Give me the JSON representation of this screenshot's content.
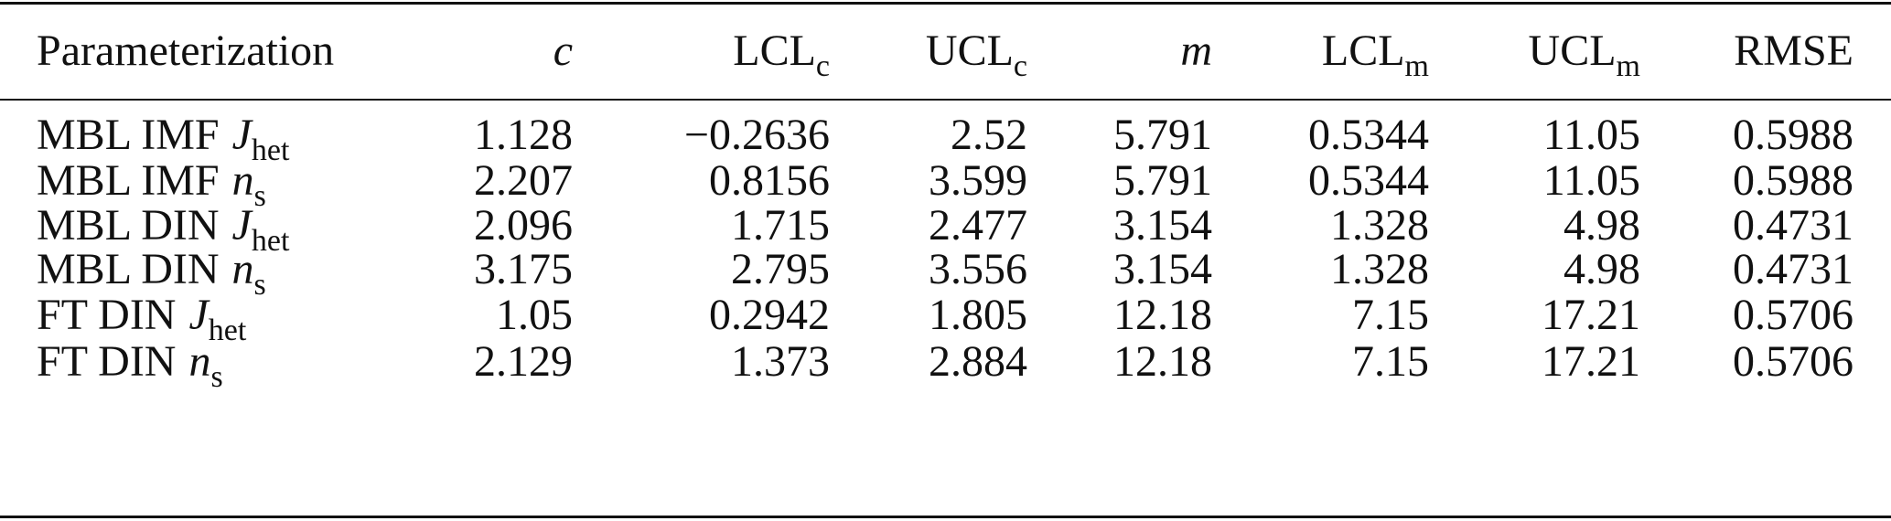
{
  "table": {
    "header": [
      {
        "text": "Parameterization"
      },
      {
        "var": "c"
      },
      {
        "text": "LCL",
        "sub": "c"
      },
      {
        "text": "UCL",
        "sub": "c"
      },
      {
        "var": "m"
      },
      {
        "text": "LCL",
        "sub": "m"
      },
      {
        "text": "UCL",
        "sub": "m"
      },
      {
        "text": "RMSE"
      }
    ],
    "rows": [
      [
        {
          "text": "MBL IMF",
          "var": "J",
          "sub": "het"
        },
        "1.128",
        "−0.2636",
        "2.52",
        "5.791",
        "0.5344",
        "11.05",
        "0.5988"
      ],
      [
        {
          "text": "MBL IMF",
          "var": "n",
          "sub": "s"
        },
        "2.207",
        "0.8156",
        "3.599",
        "5.791",
        "0.5344",
        "11.05",
        "0.5988"
      ],
      [
        {
          "text": "MBL DIN",
          "var": "J",
          "sub": "het"
        },
        "2.096",
        "1.715",
        "2.477",
        "3.154",
        "1.328",
        "4.98",
        "0.4731"
      ],
      [
        {
          "text": "MBL DIN",
          "var": "n",
          "sub": "s"
        },
        "3.175",
        "2.795",
        "3.556",
        "3.154",
        "1.328",
        "4.98",
        "0.4731"
      ],
      [
        {
          "text": "FT DIN",
          "var": "J",
          "sub": "het"
        },
        "1.05",
        "0.2942",
        "1.805",
        "12.18",
        "7.15",
        "17.21",
        "0.5706"
      ],
      [
        {
          "text": "FT DIN",
          "var": "n",
          "sub": "s"
        },
        "2.129",
        "1.373",
        "2.884",
        "12.18",
        "7.15",
        "17.21",
        "0.5706"
      ]
    ]
  }
}
